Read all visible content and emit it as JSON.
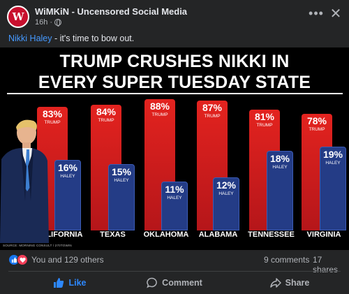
{
  "post": {
    "page_name": "WiMKiN - Uncensored Social Media",
    "avatar_letter": "W",
    "time": "16h",
    "time_separator": "·",
    "caption_tag": "Nikki Haley",
    "caption_rest": " - it's time to bow out."
  },
  "graphic": {
    "headline_1": "TRUMP CRUSHES NIKKI IN",
    "headline_2": "EVERY SUPER TUESDAY STATE",
    "source": "SOURCE: MORNING CONSULT / 270TOWIN"
  },
  "chart_data": {
    "type": "bar",
    "title": "TRUMP CRUSHES NIKKI IN EVERY SUPER TUESDAY STATE",
    "categories": [
      "CALIFORNIA",
      "TEXAS",
      "OKLAHOMA",
      "ALABAMA",
      "TENNESSEE",
      "VIRGINIA"
    ],
    "series": [
      {
        "name": "TRUMP",
        "values": [
          83,
          84,
          88,
          87,
          81,
          78
        ],
        "labels": [
          "83%",
          "84%",
          "88%",
          "87%",
          "81%",
          "78%"
        ]
      },
      {
        "name": "HALEY",
        "values": [
          16,
          15,
          11,
          12,
          18,
          19
        ],
        "labels": [
          "16%",
          "15%",
          "11%",
          "12%",
          "18%",
          "19%"
        ]
      }
    ],
    "ylim": [
      0,
      100
    ],
    "colors": {
      "trump": "#d91c1f",
      "haley": "#243c86"
    }
  },
  "reactions": {
    "summary": "You and 129 others",
    "comments": "9 comments",
    "shares": "17 shares"
  },
  "actions": {
    "like": "Like",
    "comment": "Comment",
    "share": "Share"
  },
  "icons": {
    "more": "more-options-icon",
    "close": "close-icon",
    "globe": "globe-icon"
  }
}
